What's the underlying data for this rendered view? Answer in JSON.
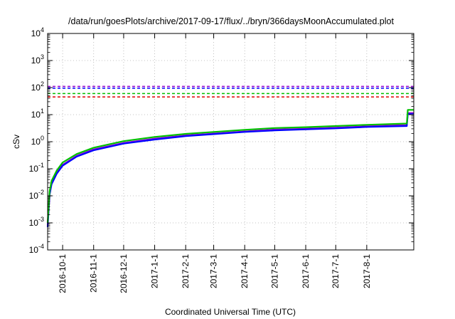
{
  "chart_data": {
    "type": "line",
    "title": "/data/run/goesPlots/archive/2017-09-17/flux/../bryn/366daysMoonAccumulated.plot",
    "xlabel": "Coordinated Universal Time (UTC)",
    "ylabel": "cSv",
    "yscale": "log",
    "ylim": [
      0.0001,
      10000
    ],
    "xlim": [
      "2016-09-16",
      "2017-09-17"
    ],
    "grid": true,
    "y_ticks": [
      {
        "base": "10",
        "exp": "-4",
        "value": 0.0001
      },
      {
        "base": "10",
        "exp": "-3",
        "value": 0.001
      },
      {
        "base": "10",
        "exp": "-2",
        "value": 0.01
      },
      {
        "base": "10",
        "exp": "-1",
        "value": 0.1
      },
      {
        "base": "10",
        "exp": "0",
        "value": 1
      },
      {
        "base": "10",
        "exp": "1",
        "value": 10
      },
      {
        "base": "10",
        "exp": "2",
        "value": 100
      },
      {
        "base": "10",
        "exp": "3",
        "value": 1000
      },
      {
        "base": "10",
        "exp": "4",
        "value": 10000
      }
    ],
    "x_ticks": [
      {
        "label": "2016-10-1",
        "date": "2016-10-01"
      },
      {
        "label": "2016-11-1",
        "date": "2016-11-01"
      },
      {
        "label": "2016-12-1",
        "date": "2016-12-01"
      },
      {
        "label": "2017-1-1",
        "date": "2017-01-01"
      },
      {
        "label": "2017-2-1",
        "date": "2017-02-01"
      },
      {
        "label": "2017-3-1",
        "date": "2017-03-01"
      },
      {
        "label": "2017-4-1",
        "date": "2017-04-01"
      },
      {
        "label": "2017-5-1",
        "date": "2017-05-01"
      },
      {
        "label": "2017-6-1",
        "date": "2017-06-01"
      },
      {
        "label": "2017-7-1",
        "date": "2017-07-01"
      },
      {
        "label": "2017-8-1",
        "date": "2017-08-01"
      }
    ],
    "thresholds": [
      {
        "value": 110,
        "color": "#9400d3",
        "style": "dashed"
      },
      {
        "value": 95,
        "color": "#0000ff",
        "style": "dashed"
      },
      {
        "value": 60,
        "color": "#00c000",
        "style": "dashed"
      },
      {
        "value": 45,
        "color": "#e00000",
        "style": "dashed"
      }
    ],
    "series": [
      {
        "color": "#9400d3",
        "x": [
          "2016-09-16",
          "2016-09-18",
          "2016-09-20",
          "2016-09-25",
          "2016-10-01",
          "2016-10-15",
          "2016-11-01",
          "2016-12-01",
          "2017-01-01",
          "2017-02-01",
          "2017-03-01",
          "2017-04-01",
          "2017-05-01",
          "2017-06-01",
          "2017-07-01",
          "2017-08-01",
          "2017-09-10",
          "2017-09-11",
          "2017-09-17"
        ],
        "values": [
          0.0008,
          0.012,
          0.03,
          0.07,
          0.14,
          0.3,
          0.52,
          0.9,
          1.3,
          1.7,
          2.0,
          2.4,
          2.8,
          3.0,
          3.3,
          3.7,
          4.1,
          11.5,
          11.5
        ]
      },
      {
        "color": "#0000ff",
        "x": [
          "2016-09-16",
          "2016-09-18",
          "2016-09-20",
          "2016-09-25",
          "2016-10-01",
          "2016-10-15",
          "2016-11-01",
          "2016-12-01",
          "2017-01-01",
          "2017-02-01",
          "2017-03-01",
          "2017-04-01",
          "2017-05-01",
          "2017-06-01",
          "2017-07-01",
          "2017-08-01",
          "2017-09-10",
          "2017-09-11",
          "2017-09-17"
        ],
        "values": [
          0.0007,
          0.011,
          0.027,
          0.065,
          0.13,
          0.28,
          0.48,
          0.85,
          1.2,
          1.6,
          1.9,
          2.3,
          2.6,
          2.85,
          3.1,
          3.5,
          3.8,
          10.5,
          10.5
        ]
      },
      {
        "color": "#00c000",
        "x": [
          "2016-09-16",
          "2016-09-18",
          "2016-09-20",
          "2016-09-25",
          "2016-10-01",
          "2016-10-15",
          "2016-11-01",
          "2016-12-01",
          "2017-01-01",
          "2017-02-01",
          "2017-03-01",
          "2017-04-01",
          "2017-05-01",
          "2017-06-01",
          "2017-07-01",
          "2017-08-01",
          "2017-09-10",
          "2017-09-11",
          "2017-09-17"
        ],
        "values": [
          0.001,
          0.015,
          0.036,
          0.085,
          0.17,
          0.35,
          0.6,
          1.05,
          1.5,
          1.95,
          2.3,
          2.75,
          3.2,
          3.45,
          3.8,
          4.2,
          4.7,
          15.0,
          15.0
        ]
      }
    ]
  }
}
